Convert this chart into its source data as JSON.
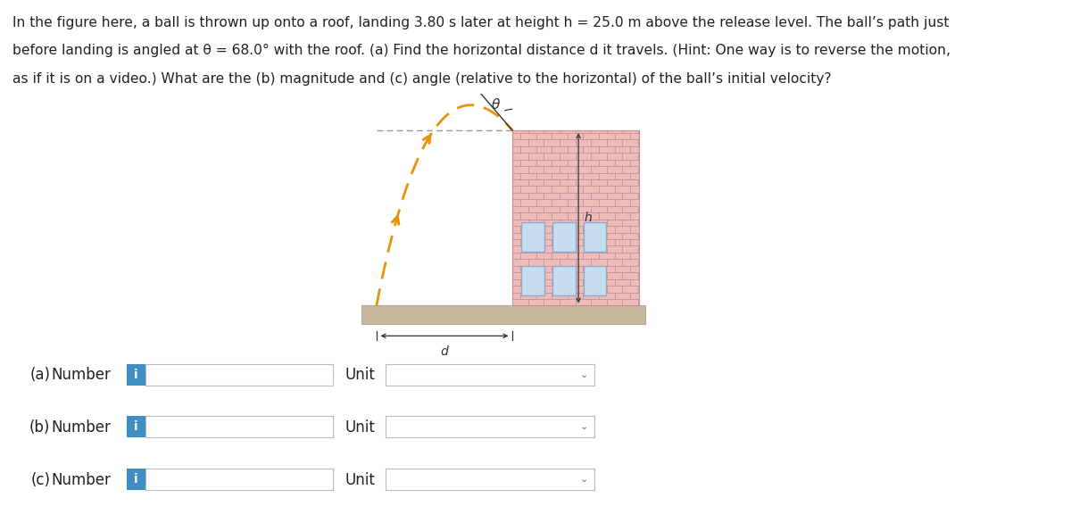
{
  "bg_color": "#ffffff",
  "text_color": "#222222",
  "problem_text_line1": "In the figure here, a ball is thrown up onto a roof, landing 3.80 s later at height ",
  "problem_text_h": "h",
  "problem_text_line1b": " = 25.0 m above the release level. The ball’s path just",
  "problem_text_line2a": "before landing is angled at ",
  "problem_text_theta": "θ",
  "problem_text_line2b": " = 68.0° with the roof. ",
  "problem_text_a": "(a)",
  "problem_text_line2c": " Find the horizontal distance ",
  "problem_text_d": "d",
  "problem_text_line2d": " it travels. (",
  "problem_text_hint": "Hint:",
  "problem_text_line2e": " One way is to reverse the motion,",
  "problem_text_line3a": "as if it is on a video.) What are the ",
  "problem_text_b": "(b)",
  "problem_text_line3b": " magnitude and ",
  "problem_text_c": "(c)",
  "problem_text_line3c": " angle (relative to the horizontal) of the ball’s initial velocity?",
  "figsize": [
    12.0,
    5.86
  ],
  "dpi": 100,
  "trajectory_color": "#E8930A",
  "building_fill": "#F0BBBB",
  "brick_line_color": "#C09090",
  "window_fill": "#C8DCF0",
  "window_edge": "#8AABCC",
  "ground_fill": "#C8B89A",
  "ground_edge": "#AAAAAA",
  "dashed_line_color": "#999999",
  "arrow_color": "#333333",
  "row_labels": [
    "(a)",
    "(b)",
    "(c)"
  ],
  "input_box_color": "#ffffff",
  "input_box_edge": "#bbbbbb",
  "info_button_color": "#3d8fc6",
  "theta_label": "θ",
  "h_label": "h",
  "d_label": "d"
}
